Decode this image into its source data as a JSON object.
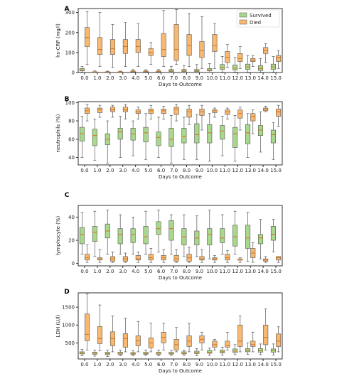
{
  "colors": {
    "survived": "#a8d88c",
    "died": "#f8b870",
    "edge": "#555555",
    "median": "#d07020"
  },
  "legend": {
    "survived": "Survived",
    "died": "Died",
    "placement": "top-right of panel A"
  },
  "chart_data": [
    {
      "type": "box",
      "panel": "A",
      "xlabel": "Days to Outcome",
      "ylabel": "hs-CRP (mg/l)",
      "ylim": [
        0,
        320
      ],
      "yticks": [
        "0",
        "100",
        "200",
        "300"
      ],
      "categories": [
        "0.0",
        "1.0",
        "2.0",
        "3.0",
        "4.0",
        "5.0",
        "6.0",
        "7.0",
        "8.0",
        "9.0",
        "10.0",
        "11.0",
        "12.0",
        "13.0",
        "14.0",
        "15.0"
      ],
      "series": [
        {
          "name": "Survived",
          "boxes": [
            [
              2,
              8,
              12,
              20,
              30
            ],
            [
              1,
              2,
              3,
              4,
              8
            ],
            [
              1,
              2,
              3,
              4,
              7
            ],
            [
              1,
              2,
              3,
              4,
              7
            ],
            [
              1,
              3,
              5,
              8,
              15
            ],
            [
              1,
              3,
              5,
              8,
              14
            ],
            [
              1,
              3,
              5,
              8,
              15
            ],
            [
              1,
              5,
              10,
              15,
              30
            ],
            [
              1,
              5,
              10,
              15,
              35
            ],
            [
              1,
              5,
              10,
              15,
              40
            ],
            [
              1,
              8,
              12,
              20,
              45
            ],
            [
              2,
              15,
              25,
              40,
              80
            ],
            [
              2,
              12,
              22,
              38,
              75
            ],
            [
              2,
              15,
              28,
              42,
              85
            ],
            [
              2,
              10,
              20,
              35,
              70
            ],
            [
              2,
              15,
              28,
              42,
              80
            ]
          ]
        },
        {
          "name": "Died",
          "boxes": [
            [
              40,
              130,
              175,
              225,
              305
            ],
            [
              30,
              90,
              115,
              175,
              300
            ],
            [
              25,
              90,
              120,
              165,
              240
            ],
            [
              30,
              95,
              130,
              165,
              250
            ],
            [
              30,
              100,
              130,
              165,
              245
            ],
            [
              40,
              85,
              100,
              120,
              150
            ],
            [
              30,
              80,
              115,
              195,
              310
            ],
            [
              40,
              60,
              115,
              240,
              315
            ],
            [
              30,
              85,
              135,
              190,
              295
            ],
            [
              20,
              75,
              110,
              155,
              280
            ],
            [
              20,
              105,
              135,
              190,
              245
            ],
            [
              25,
              50,
              75,
              105,
              140
            ],
            [
              20,
              55,
              70,
              95,
              130
            ],
            [
              30,
              55,
              60,
              70,
              85
            ],
            [
              50,
              95,
              110,
              125,
              145
            ],
            [
              20,
              55,
              75,
              85,
              110
            ]
          ]
        }
      ]
    },
    {
      "type": "box",
      "panel": "B",
      "xlabel": "Days to Outcome",
      "ylabel": "neutrophils (%)",
      "ylim": [
        32,
        101
      ],
      "yticks": [
        "40",
        "60",
        "80",
        "100"
      ],
      "categories": [
        "0.0",
        "1.0",
        "2.0",
        "3.0",
        "4.0",
        "5.0",
        "6.0",
        "7.0",
        "8.0",
        "9.0",
        "10.0",
        "11.0",
        "12.0",
        "13.0",
        "14.0",
        "15.0"
      ],
      "series": [
        {
          "name": "Survived",
          "boxes": [
            [
              40,
              58,
              66,
              73,
              85
            ],
            [
              37,
              53,
              64,
              71,
              82
            ],
            [
              34,
              54,
              60,
              66,
              80
            ],
            [
              40,
              60,
              68,
              72,
              85
            ],
            [
              42,
              59,
              66,
              72,
              80
            ],
            [
              38,
              57,
              67,
              73,
              88
            ],
            [
              40,
              53,
              62,
              68,
              84
            ],
            [
              34,
              52,
              60,
              72,
              86
            ],
            [
              38,
              56,
              63,
              72,
              84
            ],
            [
              38,
              56,
              65,
              77,
              87
            ],
            [
              36,
              56,
              67,
              76,
              88
            ],
            [
              42,
              60,
              69,
              75,
              85
            ],
            [
              36,
              51,
              66,
              73,
              86
            ],
            [
              40,
              55,
              67,
              76,
              88
            ],
            [
              46,
              64,
              70,
              75,
              90
            ],
            [
              38,
              56,
              65,
              70,
              78
            ]
          ]
        },
        {
          "name": "Died",
          "boxes": [
            [
              80,
              88,
              91,
              94,
              98
            ],
            [
              84,
              89,
              92,
              94,
              97
            ],
            [
              84,
              90,
              92,
              95,
              97
            ],
            [
              82,
              90,
              92,
              95,
              98
            ],
            [
              82,
              88,
              90,
              92,
              95
            ],
            [
              82,
              88,
              91,
              93,
              97
            ],
            [
              82,
              88,
              91,
              93,
              96
            ],
            [
              80,
              87,
              93,
              95,
              98
            ],
            [
              76,
              84,
              90,
              93,
              97
            ],
            [
              70,
              86,
              90,
              93,
              97
            ],
            [
              84,
              89,
              91,
              92,
              94
            ],
            [
              82,
              87,
              90,
              92,
              94
            ],
            [
              70,
              83,
              88,
              92,
              95
            ],
            [
              66,
              80,
              85,
              88,
              92
            ],
            [
              90,
              91,
              93,
              94,
              96
            ],
            [
              74,
              85,
              90,
              93,
              97
            ]
          ]
        }
      ]
    },
    {
      "type": "box",
      "panel": "C",
      "xlabel": "Days to Outcome",
      "ylabel": "lymphocyte (%)",
      "ylim": [
        -2,
        50
      ],
      "yticks": [
        "0",
        "20",
        "40"
      ],
      "categories": [
        "0.0",
        "1.0",
        "2.0",
        "3.0",
        "4.0",
        "5.0",
        "6.0",
        "7.0",
        "8.0",
        "9.0",
        "10.0",
        "11.0",
        "12.0",
        "13.0",
        "14.0",
        "15.0"
      ],
      "series": [
        {
          "name": "Survived",
          "boxes": [
            [
              8,
              17,
              25,
              31,
              44
            ],
            [
              6,
              19,
              27,
              32,
              45
            ],
            [
              8,
              22,
              28,
              34,
              46
            ],
            [
              8,
              17,
              25,
              30,
              42
            ],
            [
              8,
              18,
              25,
              30,
              40
            ],
            [
              8,
              17,
              23,
              32,
              45
            ],
            [
              10,
              25,
              30,
              36,
              46
            ],
            [
              8,
              20,
              30,
              37,
              42
            ],
            [
              6,
              16,
              23,
              30,
              42
            ],
            [
              6,
              16,
              22,
              28,
              41
            ],
            [
              4,
              16,
              25,
              30,
              46
            ],
            [
              8,
              18,
              22,
              30,
              42
            ],
            [
              8,
              15,
              23,
              33,
              45
            ],
            [
              2,
              13,
              22,
              33,
              44
            ],
            [
              4,
              17,
              22,
              25,
              38
            ],
            [
              10,
              20,
              25,
              32,
              38
            ]
          ]
        },
        {
          "name": "Died",
          "boxes": [
            [
              1,
              3,
              5,
              8,
              16
            ],
            [
              1,
              3,
              4,
              5,
              12
            ],
            [
              1,
              2,
              4,
              6,
              10
            ],
            [
              1,
              2,
              4,
              6,
              9
            ],
            [
              1,
              3,
              4,
              7,
              10
            ],
            [
              1,
              3,
              5,
              8,
              13
            ],
            [
              1,
              3,
              5,
              7,
              12
            ],
            [
              1,
              2,
              4,
              7,
              12
            ],
            [
              1,
              2,
              5,
              8,
              14
            ],
            [
              1,
              3,
              4,
              6,
              12
            ],
            [
              1,
              3,
              4,
              5,
              7
            ],
            [
              1,
              3,
              5,
              8,
              11
            ],
            [
              1,
              3,
              3,
              4,
              5
            ],
            [
              1,
              5,
              9,
              13,
              18
            ],
            [
              1,
              2,
              3,
              4,
              6
            ],
            [
              1,
              3,
              5,
              6,
              6
            ]
          ]
        }
      ]
    },
    {
      "type": "box",
      "panel": "D",
      "xlabel": "Days to Outcome",
      "ylabel": "LDH (U/l)",
      "ylim": [
        50,
        1900
      ],
      "yticks": [
        "500",
        "1000",
        "1500"
      ],
      "categories": [
        "0.0",
        "1.0",
        "2.0",
        "3.0",
        "4.0",
        "5.0",
        "6.0",
        "7.0",
        "8.0",
        "9.0",
        "10.0",
        "11.0",
        "12.0",
        "13.0",
        "14.0",
        "15.0"
      ],
      "series": [
        {
          "name": "Survived",
          "boxes": [
            [
              140,
              190,
              215,
              250,
              320
            ],
            [
              130,
              180,
              210,
              240,
              300
            ],
            [
              120,
              170,
              200,
              240,
              300
            ],
            [
              140,
              180,
              210,
              240,
              300
            ],
            [
              140,
              180,
              200,
              230,
              280
            ],
            [
              150,
              180,
              200,
              240,
              300
            ],
            [
              140,
              180,
              210,
              240,
              300
            ],
            [
              150,
              185,
              200,
              240,
              290
            ],
            [
              150,
              190,
              210,
              250,
              300
            ],
            [
              140,
              200,
              230,
              270,
              340
            ],
            [
              150,
              210,
              240,
              290,
              360
            ],
            [
              160,
              220,
              250,
              300,
              380
            ],
            [
              170,
              230,
              270,
              330,
              450
            ],
            [
              180,
              250,
              290,
              340,
              500
            ],
            [
              170,
              240,
              280,
              340,
              470
            ],
            [
              160,
              240,
              280,
              330,
              470
            ]
          ]
        },
        {
          "name": "Died",
          "boxes": [
            [
              300,
              560,
              740,
              1310,
              1870
            ],
            [
              280,
              480,
              620,
              960,
              1560
            ],
            [
              250,
              420,
              620,
              810,
              1250
            ],
            [
              250,
              380,
              620,
              760,
              1190
            ],
            [
              250,
              420,
              560,
              700,
              1100
            ],
            [
              250,
              360,
              500,
              640,
              1050
            ],
            [
              300,
              500,
              650,
              800,
              1050
            ],
            [
              250,
              300,
              450,
              600,
              930
            ],
            [
              250,
              400,
              550,
              700,
              1050
            ],
            [
              300,
              500,
              600,
              700,
              800
            ],
            [
              300,
              380,
              450,
              550,
              600
            ],
            [
              300,
              380,
              420,
              550,
              800
            ],
            [
              250,
              400,
              550,
              1000,
              1250
            ],
            [
              250,
              400,
              450,
              550,
              800
            ],
            [
              300,
              450,
              650,
              1000,
              1450
            ],
            [
              250,
              400,
              550,
              750,
              950
            ]
          ]
        }
      ]
    }
  ]
}
